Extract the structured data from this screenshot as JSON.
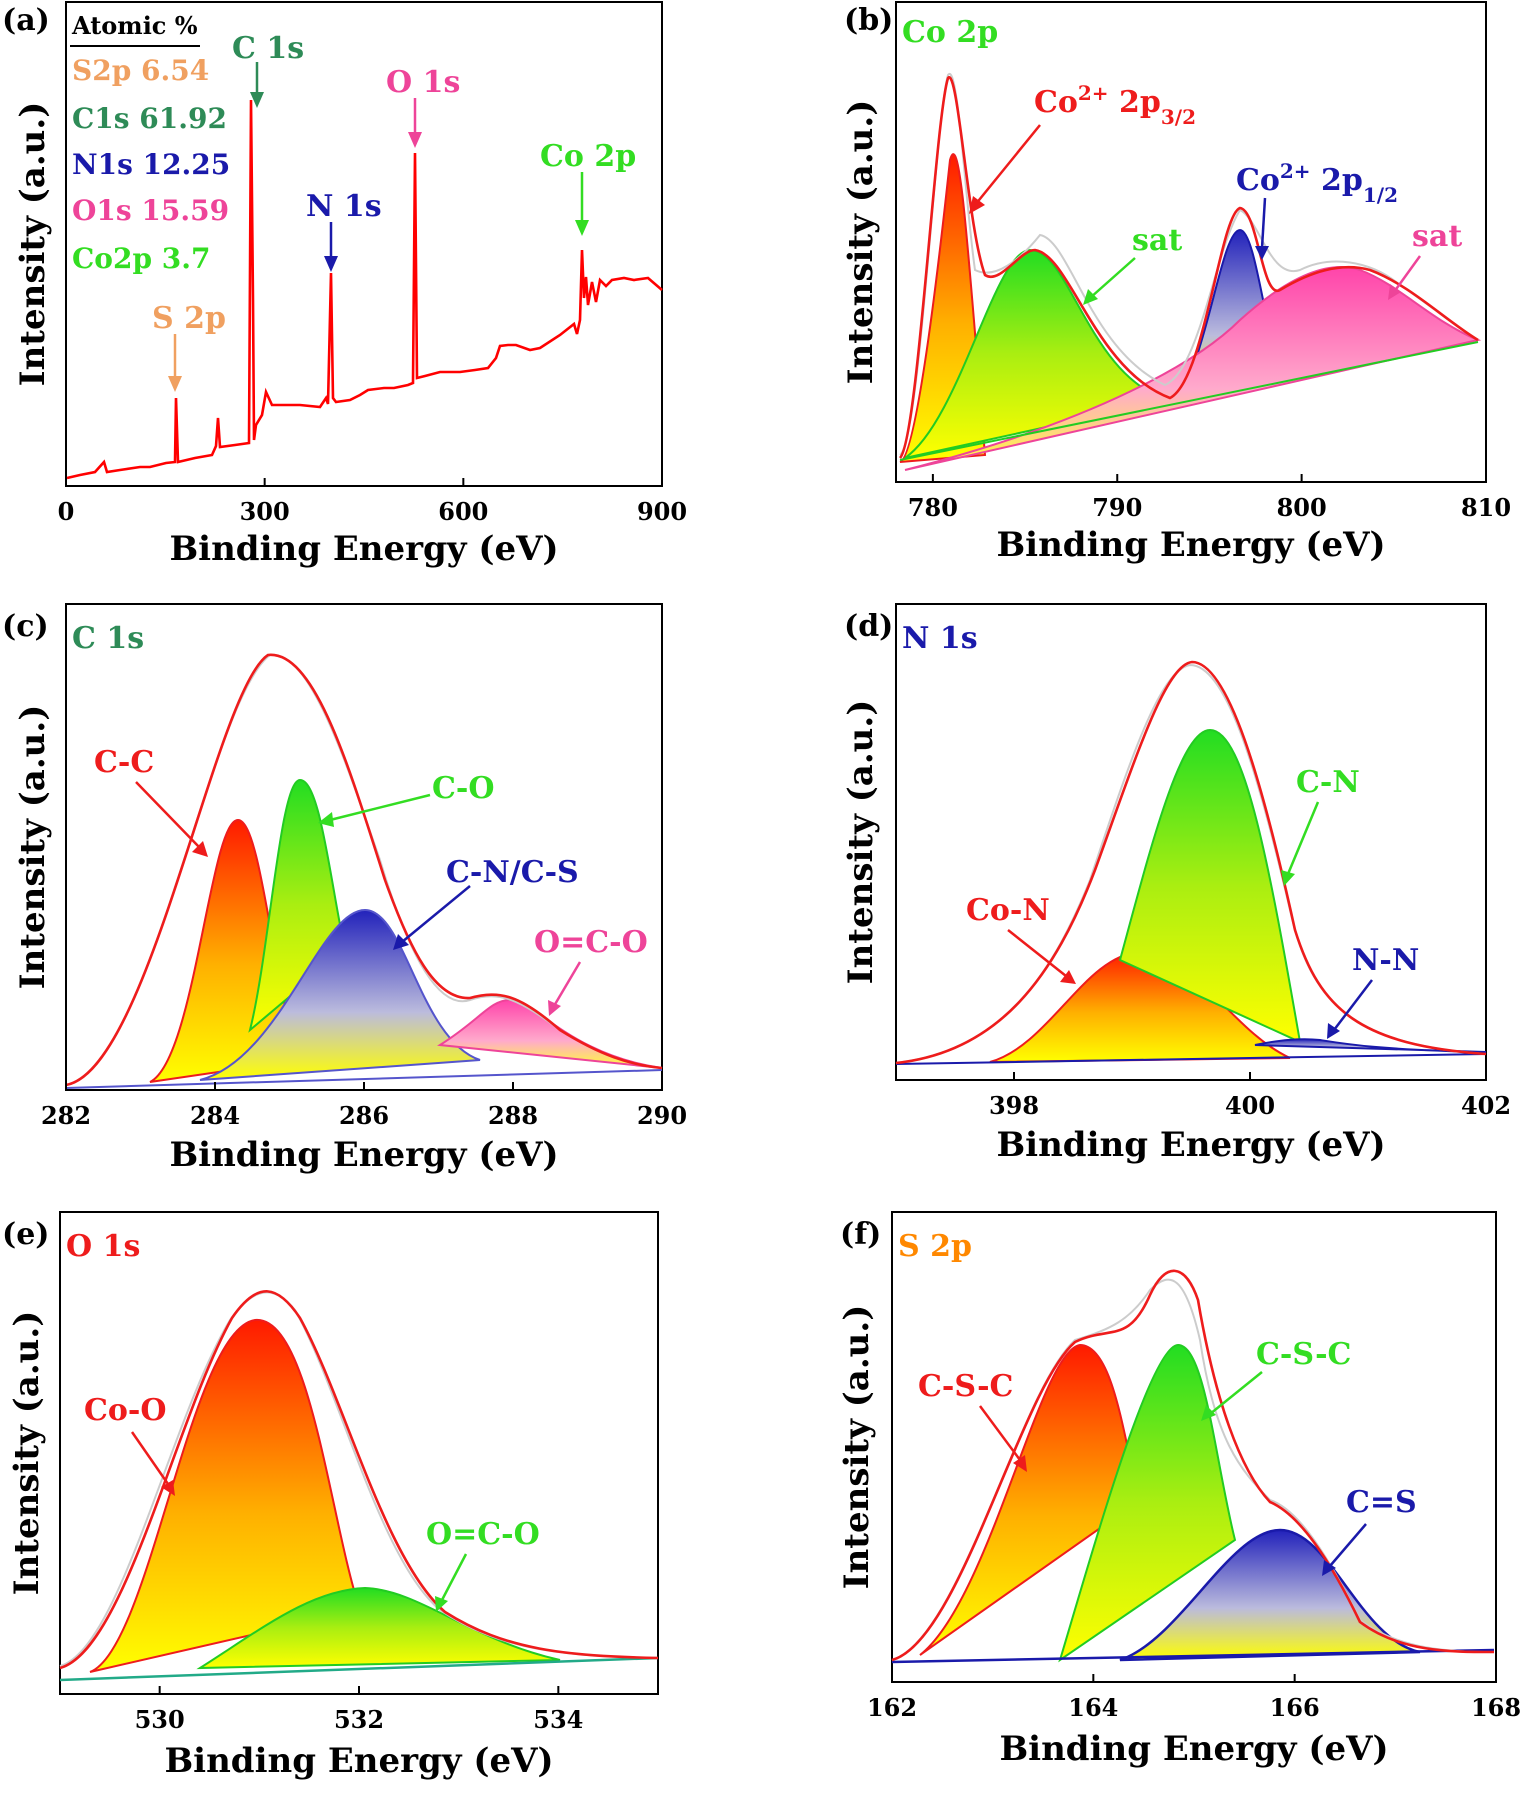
{
  "colors": {
    "red": "#ee1c1c",
    "green": "#2e8b57",
    "bright_green": "#33dd22",
    "blue": "#1a1aaa",
    "pink": "#ee4499",
    "orange": "#f0a060",
    "dark_orange": "#ff8800",
    "yellow": "#ffff00",
    "data_gray": "#cccccc"
  },
  "chart_data": [
    {
      "panel": "(a)",
      "type": "line",
      "xlabel": "Binding Energy (eV)",
      "ylabel": "Intensity (a.u.)",
      "xlim": [
        0,
        900
      ],
      "xticks": [
        0,
        300,
        600,
        900
      ],
      "legend": {
        "title": "Atomic %",
        "items": [
          {
            "text": "S2p 6.54",
            "color": "orange"
          },
          {
            "text": "C1s 61.92",
            "color": "green"
          },
          {
            "text": "N1s 12.25",
            "color": "blue"
          },
          {
            "text": "O1s 15.59",
            "color": "pink"
          },
          {
            "text": "Co2p 3.7",
            "color": "bright_green"
          }
        ]
      },
      "peaks": [
        {
          "label": "S 2p",
          "x": 164,
          "color": "orange"
        },
        {
          "label": "C 1s",
          "x": 285,
          "color": "green"
        },
        {
          "label": "N 1s",
          "x": 400,
          "color": "blue"
        },
        {
          "label": "O 1s",
          "x": 532,
          "color": "pink"
        },
        {
          "label": "Co 2p",
          "x": 781,
          "color": "bright_green"
        }
      ]
    },
    {
      "panel": "(b)",
      "type": "area",
      "title": "Co 2p",
      "xlabel": "Binding Energy (eV)",
      "ylabel": "Intensity (a.u.)",
      "xlim": [
        778,
        810
      ],
      "xticks": [
        780,
        790,
        800,
        810
      ],
      "components": [
        {
          "label_html": "Co<tspan baseline-shift='super' font-size='20'>2+</tspan> 2p<tspan baseline-shift='sub' font-size='20'>3/2</tspan>",
          "center": 781.0,
          "label_color": "red"
        },
        {
          "label": "sat",
          "center": 785.5,
          "label_color": "bright_green"
        },
        {
          "label_html": "Co<tspan baseline-shift='super' font-size='20'>2+</tspan> 2p<tspan baseline-shift='sub' font-size='20'>1/2</tspan>",
          "center": 796.8,
          "label_color": "blue"
        },
        {
          "label": "sat",
          "center": 802.5,
          "label_color": "pink"
        }
      ]
    },
    {
      "panel": "(c)",
      "type": "area",
      "title": "C 1s",
      "xlabel": "Binding Energy (eV)",
      "ylabel": "Intensity (a.u.)",
      "xlim": [
        282,
        290
      ],
      "xticks": [
        282,
        284,
        286,
        288,
        290
      ],
      "components": [
        {
          "label": "C-C",
          "center": 284.3,
          "label_color": "red"
        },
        {
          "label": "C-O",
          "center": 285.05,
          "label_color": "bright_green"
        },
        {
          "label": "C-N/C-S",
          "center": 286.0,
          "label_color": "blue"
        },
        {
          "label": "O=C-O",
          "center": 288.0,
          "label_color": "pink"
        }
      ]
    },
    {
      "panel": "(d)",
      "type": "area",
      "title": "N 1s",
      "xlabel": "Binding Energy (eV)",
      "ylabel": "Intensity (a.u.)",
      "xlim": [
        397,
        402
      ],
      "xticks": [
        398,
        400,
        402
      ],
      "components": [
        {
          "label": "Co-N",
          "center": 399.1,
          "label_color": "red"
        },
        {
          "label": "C-N",
          "center": 399.7,
          "label_color": "bright_green"
        },
        {
          "label": "N-N",
          "center": 400.5,
          "label_color": "blue"
        }
      ]
    },
    {
      "panel": "(e)",
      "type": "area",
      "title": "O 1s",
      "xlabel": "Binding Energy (eV)",
      "ylabel": "Intensity (a.u.)",
      "xlim": [
        529,
        535
      ],
      "xticks": [
        530,
        532,
        534
      ],
      "components": [
        {
          "label": "Co-O",
          "center": 531.0,
          "label_color": "red"
        },
        {
          "label": "O=C-O",
          "center": 532.1,
          "label_color": "bright_green"
        }
      ]
    },
    {
      "panel": "(f)",
      "type": "area",
      "title": "S 2p",
      "xlabel": "Binding Energy (eV)",
      "ylabel": "Intensity (a.u.)",
      "xlim": [
        162,
        168
      ],
      "xticks": [
        162,
        164,
        166,
        168
      ],
      "components": [
        {
          "label": "C-S-C",
          "center": 163.85,
          "label_color": "red"
        },
        {
          "label": "C-S-C",
          "center": 164.85,
          "label_color": "bright_green"
        },
        {
          "label": "C=S",
          "center": 165.8,
          "label_color": "blue"
        }
      ]
    }
  ]
}
